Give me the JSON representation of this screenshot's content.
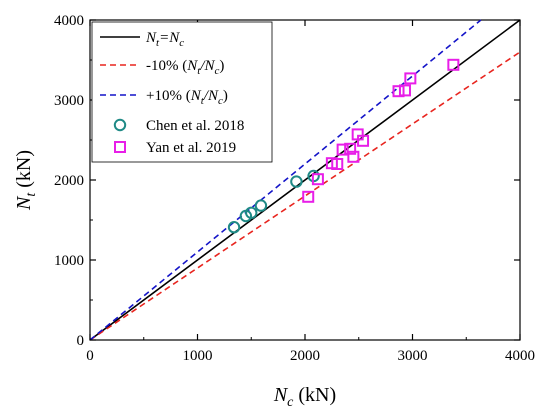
{
  "chart_data": {
    "type": "scatter",
    "xlabel": {
      "base": "N",
      "sub": "c",
      "unit": " (kN)"
    },
    "ylabel": {
      "base": "N",
      "sub": "t",
      "unit": " (kN)"
    },
    "xlim": [
      0,
      4000
    ],
    "ylim": [
      0,
      4000
    ],
    "xticks": [
      "0",
      "1000",
      "2000",
      "3000",
      "4000"
    ],
    "yticks": [
      "0",
      "1000",
      "2000",
      "3000",
      "4000"
    ],
    "grid": false,
    "legend_position": "top-left",
    "reference_lines": [
      {
        "label": "N_t=N_c",
        "slope": 1.0,
        "color": "#000000",
        "dash": "solid"
      },
      {
        "label": "-10% (N_t/N_c)",
        "slope": 0.9,
        "color": "#e8251f",
        "dash": "dashed"
      },
      {
        "label": "+10% (N_t/N_c)",
        "slope": 1.1,
        "color": "#1414c8",
        "dash": "dashed"
      }
    ],
    "series": [
      {
        "name": "Chen et al. 2018",
        "marker": "circle",
        "color": "#1f8a86",
        "points": [
          [
            1340,
            1410
          ],
          [
            1450,
            1550
          ],
          [
            1500,
            1590
          ],
          [
            1590,
            1680
          ],
          [
            1920,
            1980
          ],
          [
            2080,
            2050
          ]
        ]
      },
      {
        "name": "Yan et al. 2019",
        "marker": "square",
        "color": "#e81ee8",
        "points": [
          [
            2030,
            1790
          ],
          [
            2120,
            2010
          ],
          [
            2250,
            2210
          ],
          [
            2300,
            2200
          ],
          [
            2350,
            2380
          ],
          [
            2420,
            2390
          ],
          [
            2450,
            2290
          ],
          [
            2490,
            2570
          ],
          [
            2540,
            2490
          ],
          [
            2870,
            3110
          ],
          [
            2930,
            3120
          ],
          [
            2980,
            3270
          ],
          [
            3380,
            3440
          ]
        ]
      }
    ]
  },
  "legend": {
    "line1": {
      "base": "N",
      "sub1": "t",
      "mid": "=N",
      "sub2": "c"
    },
    "line2": {
      "prefix": "-10% (",
      "base1": "N",
      "sub1": "t",
      "slash": "/",
      "base2": "N",
      "sub2": "c",
      "suffix": ")"
    },
    "line3": {
      "prefix": "+10% (",
      "base1": "N",
      "sub1": "t",
      "slash": "/",
      "base2": "N",
      "sub2": "c",
      "suffix": ")"
    },
    "line4": "Chen et al. 2018",
    "line5": "Yan et al. 2019"
  }
}
